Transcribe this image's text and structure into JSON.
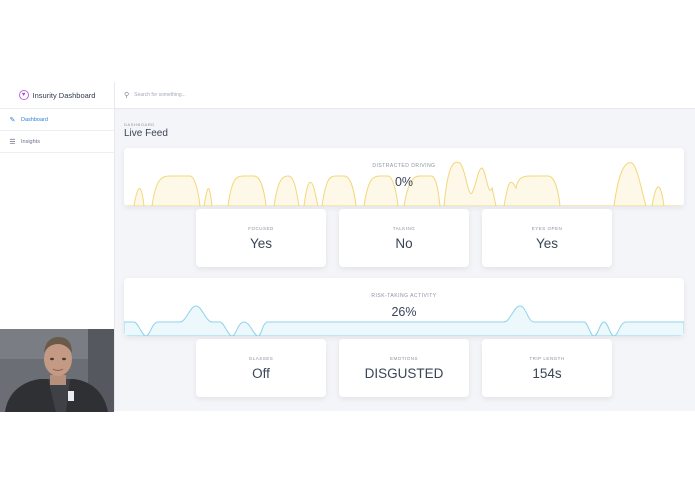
{
  "sidebar": {
    "brand": "Insurity Dashboard",
    "items": [
      {
        "label": "Dashboard",
        "icon": "pencil-icon",
        "active": true
      },
      {
        "label": "Insights",
        "icon": "list-icon",
        "active": false
      }
    ]
  },
  "search": {
    "placeholder": "Search for something..."
  },
  "header": {
    "eyebrow": "DASHBOARD",
    "title": "Live Feed"
  },
  "distracted": {
    "label": "DISTRACTED DRIVING",
    "value": "0%",
    "color": "#f3d77a"
  },
  "risk": {
    "label": "RISK-TAKING ACTIVITY",
    "value": "26%",
    "color": "#8fd3ea"
  },
  "stats_row1": [
    {
      "label": "FOCUSED",
      "value": "Yes"
    },
    {
      "label": "TALKING",
      "value": "No"
    },
    {
      "label": "EYES OPEN",
      "value": "Yes"
    }
  ],
  "stats_row2": [
    {
      "label": "GLASSES",
      "value": "Off"
    },
    {
      "label": "EMOTIONS",
      "value": "DISGUSTED"
    },
    {
      "label": "TRIP LENGTH",
      "value": "154s"
    }
  ]
}
